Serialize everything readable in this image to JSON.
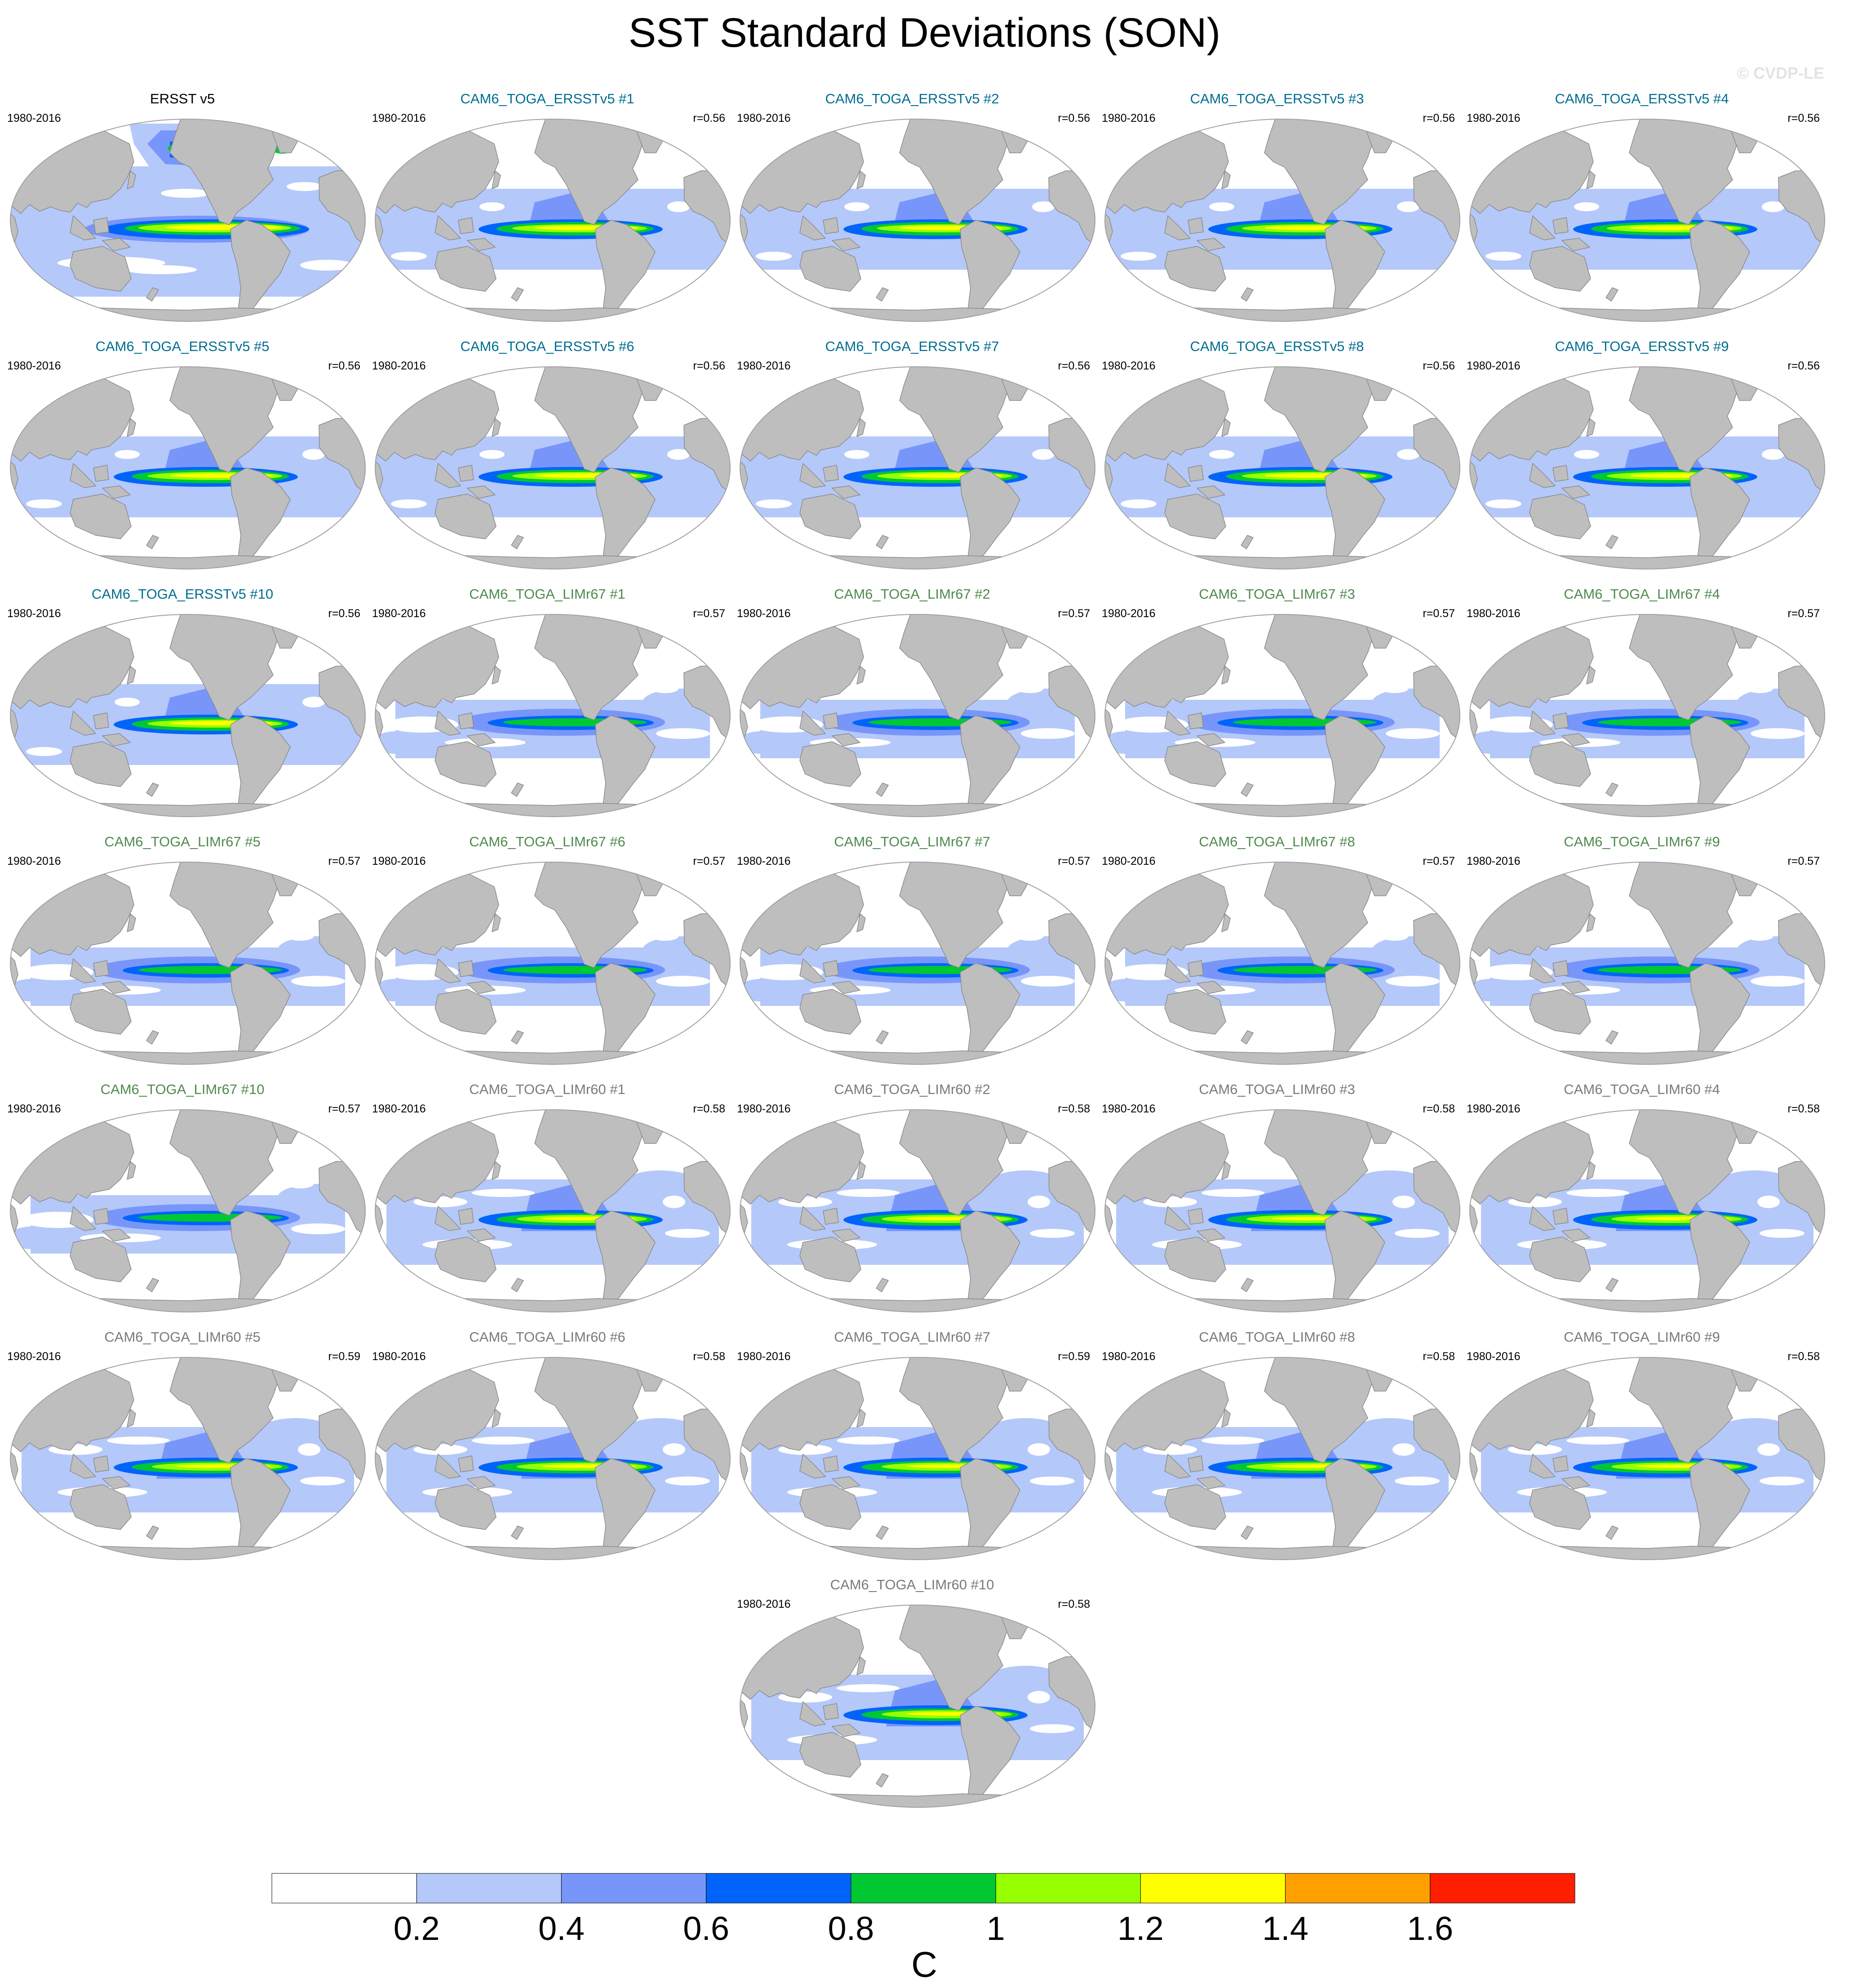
{
  "chart_data": {
    "type": "map-contour-grid",
    "title": "SST Standard Deviations (SON)",
    "watermark": "© CVDP-LE",
    "colorbar": {
      "label": "C",
      "levels": [
        "0.2",
        "0.4",
        "0.6",
        "0.8",
        "1",
        "1.2",
        "1.4",
        "1.6"
      ],
      "colors": [
        "#ffffff",
        "#b4c8fa",
        "#7896fa",
        "#0064fa",
        "#00c832",
        "#96ff00",
        "#ffff00",
        "#ffa000",
        "#ff1e00"
      ]
    },
    "group_colors": {
      "obs": "#000000",
      "ersst": "#006d8f",
      "limr67": "#4e8a4e",
      "limr60": "#7a7a7a"
    },
    "panels": [
      {
        "title": "ERSST v5",
        "years": "1980-2016",
        "r": "",
        "group": "obs",
        "pattern": "obs"
      },
      {
        "title": "CAM6_TOGA_ERSSTv5 #1",
        "years": "1980-2016",
        "r": "r=0.56",
        "group": "ersst",
        "pattern": "ersst"
      },
      {
        "title": "CAM6_TOGA_ERSSTv5 #2",
        "years": "1980-2016",
        "r": "r=0.56",
        "group": "ersst",
        "pattern": "ersst"
      },
      {
        "title": "CAM6_TOGA_ERSSTv5 #3",
        "years": "1980-2016",
        "r": "r=0.56",
        "group": "ersst",
        "pattern": "ersst"
      },
      {
        "title": "CAM6_TOGA_ERSSTv5 #4",
        "years": "1980-2016",
        "r": "r=0.56",
        "group": "ersst",
        "pattern": "ersst"
      },
      {
        "title": "CAM6_TOGA_ERSSTv5 #5",
        "years": "1980-2016",
        "r": "r=0.56",
        "group": "ersst",
        "pattern": "ersst"
      },
      {
        "title": "CAM6_TOGA_ERSSTv5 #6",
        "years": "1980-2016",
        "r": "r=0.56",
        "group": "ersst",
        "pattern": "ersst"
      },
      {
        "title": "CAM6_TOGA_ERSSTv5 #7",
        "years": "1980-2016",
        "r": "r=0.56",
        "group": "ersst",
        "pattern": "ersst"
      },
      {
        "title": "CAM6_TOGA_ERSSTv5 #8",
        "years": "1980-2016",
        "r": "r=0.56",
        "group": "ersst",
        "pattern": "ersst"
      },
      {
        "title": "CAM6_TOGA_ERSSTv5 #9",
        "years": "1980-2016",
        "r": "r=0.56",
        "group": "ersst",
        "pattern": "ersst"
      },
      {
        "title": "CAM6_TOGA_ERSSTv5 #10",
        "years": "1980-2016",
        "r": "r=0.56",
        "group": "ersst",
        "pattern": "ersst"
      },
      {
        "title": "CAM6_TOGA_LIMr67 #1",
        "years": "1980-2016",
        "r": "r=0.57",
        "group": "limr67",
        "pattern": "limr67"
      },
      {
        "title": "CAM6_TOGA_LIMr67 #2",
        "years": "1980-2016",
        "r": "r=0.57",
        "group": "limr67",
        "pattern": "limr67"
      },
      {
        "title": "CAM6_TOGA_LIMr67 #3",
        "years": "1980-2016",
        "r": "r=0.57",
        "group": "limr67",
        "pattern": "limr67"
      },
      {
        "title": "CAM6_TOGA_LIMr67 #4",
        "years": "1980-2016",
        "r": "r=0.57",
        "group": "limr67",
        "pattern": "limr67"
      },
      {
        "title": "CAM6_TOGA_LIMr67 #5",
        "years": "1980-2016",
        "r": "r=0.57",
        "group": "limr67",
        "pattern": "limr67"
      },
      {
        "title": "CAM6_TOGA_LIMr67 #6",
        "years": "1980-2016",
        "r": "r=0.57",
        "group": "limr67",
        "pattern": "limr67"
      },
      {
        "title": "CAM6_TOGA_LIMr67 #7",
        "years": "1980-2016",
        "r": "r=0.57",
        "group": "limr67",
        "pattern": "limr67"
      },
      {
        "title": "CAM6_TOGA_LIMr67 #8",
        "years": "1980-2016",
        "r": "r=0.57",
        "group": "limr67",
        "pattern": "limr67"
      },
      {
        "title": "CAM6_TOGA_LIMr67 #9",
        "years": "1980-2016",
        "r": "r=0.57",
        "group": "limr67",
        "pattern": "limr67"
      },
      {
        "title": "CAM6_TOGA_LIMr67 #10",
        "years": "1980-2016",
        "r": "r=0.57",
        "group": "limr67",
        "pattern": "limr67"
      },
      {
        "title": "CAM6_TOGA_LIMr60 #1",
        "years": "1980-2016",
        "r": "r=0.58",
        "group": "limr60",
        "pattern": "limr60"
      },
      {
        "title": "CAM6_TOGA_LIMr60 #2",
        "years": "1980-2016",
        "r": "r=0.58",
        "group": "limr60",
        "pattern": "limr60"
      },
      {
        "title": "CAM6_TOGA_LIMr60 #3",
        "years": "1980-2016",
        "r": "r=0.58",
        "group": "limr60",
        "pattern": "limr60"
      },
      {
        "title": "CAM6_TOGA_LIMr60 #4",
        "years": "1980-2016",
        "r": "r=0.58",
        "group": "limr60",
        "pattern": "limr60"
      },
      {
        "title": "CAM6_TOGA_LIMr60 #5",
        "years": "1980-2016",
        "r": "r=0.59",
        "group": "limr60",
        "pattern": "limr60"
      },
      {
        "title": "CAM6_TOGA_LIMr60 #6",
        "years": "1980-2016",
        "r": "r=0.58",
        "group": "limr60",
        "pattern": "limr60"
      },
      {
        "title": "CAM6_TOGA_LIMr60 #7",
        "years": "1980-2016",
        "r": "r=0.59",
        "group": "limr60",
        "pattern": "limr60"
      },
      {
        "title": "CAM6_TOGA_LIMr60 #8",
        "years": "1980-2016",
        "r": "r=0.58",
        "group": "limr60",
        "pattern": "limr60"
      },
      {
        "title": "CAM6_TOGA_LIMr60 #9",
        "years": "1980-2016",
        "r": "r=0.58",
        "group": "limr60",
        "pattern": "limr60"
      },
      {
        "title": "CAM6_TOGA_LIMr60 #10",
        "years": "1980-2016",
        "r": "r=0.58",
        "group": "limr60",
        "pattern": "limr60"
      }
    ]
  }
}
